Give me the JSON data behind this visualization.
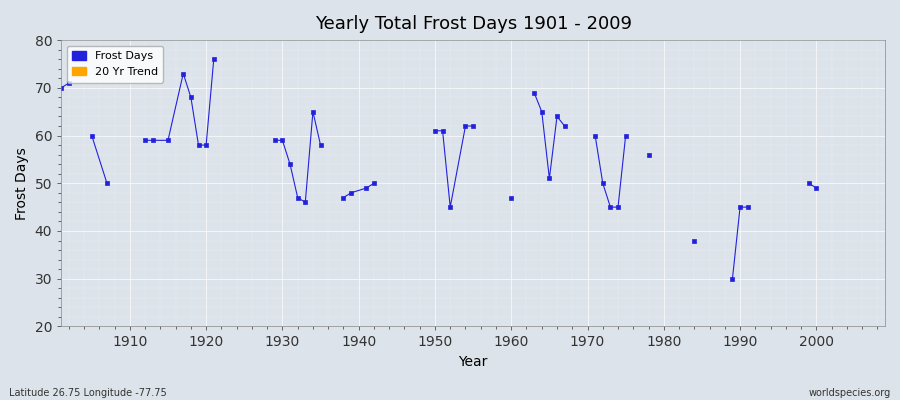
{
  "title": "Yearly Total Frost Days 1901 - 2009",
  "xlabel": "Year",
  "ylabel": "Frost Days",
  "xlim": [
    1901,
    2009
  ],
  "ylim": [
    20,
    80
  ],
  "yticks": [
    20,
    30,
    40,
    50,
    60,
    70,
    80
  ],
  "xticks": [
    1910,
    1920,
    1930,
    1940,
    1950,
    1960,
    1970,
    1980,
    1990,
    2000
  ],
  "background_color": "#dde3ea",
  "plot_bg_color": "#dde3ea",
  "line_color": "#2222dd",
  "marker_color": "#2222dd",
  "trend_color": "#ffa500",
  "subtitle_left": "Latitude 26.75 Longitude -77.75",
  "subtitle_right": "worldspecies.org",
  "frost_days": {
    "1901": 70,
    "1902": 71,
    "1905": 60,
    "1907": 50,
    "1912": 59,
    "1913": 59,
    "1915": 59,
    "1917": 73,
    "1918": 68,
    "1919": 58,
    "1920": 58,
    "1921": 76,
    "1929": 59,
    "1930": 59,
    "1931": 54,
    "1932": 47,
    "1933": 46,
    "1934": 65,
    "1935": 58,
    "1938": 47,
    "1939": 48,
    "1941": 49,
    "1942": 50,
    "1950": 61,
    "1951": 61,
    "1952": 45,
    "1954": 62,
    "1955": 62,
    "1960": 47,
    "1963": 69,
    "1964": 65,
    "1965": 51,
    "1966": 64,
    "1967": 62,
    "1971": 60,
    "1972": 50,
    "1973": 45,
    "1974": 45,
    "1975": 60,
    "1978": 56,
    "1984": 38,
    "1989": 30,
    "1990": 45,
    "1991": 45,
    "1999": 50,
    "2000": 49
  }
}
